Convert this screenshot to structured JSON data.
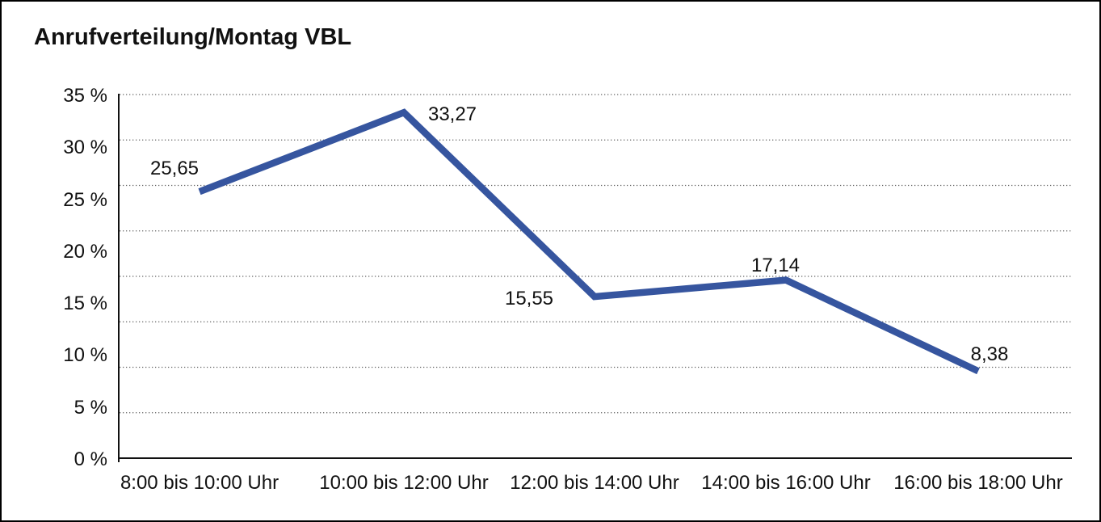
{
  "page": {
    "background": "#ffffff",
    "frame_border_color": "#000000"
  },
  "chart_data": {
    "type": "line",
    "title": "Anrufverteilung/Montag VBL",
    "categories": [
      "8:00 bis 10:00 Uhr",
      "10:00 bis 12:00 Uhr",
      "12:00 bis 14:00 Uhr",
      "14:00 bis 16:00 Uhr",
      "16:00 bis 18:00 Uhr"
    ],
    "values": [
      25.65,
      33.27,
      15.55,
      17.14,
      8.38
    ],
    "point_labels": [
      "25,65",
      "33,27",
      "15,55",
      "17,14",
      "8,38"
    ],
    "ylim": [
      0,
      35
    ],
    "yticks": [
      35,
      30,
      25,
      20,
      15,
      10,
      5,
      0
    ],
    "ytick_labels": [
      "35 %",
      "30 %",
      "25 %",
      "20 %",
      "15 %",
      "10 %",
      "5 %",
      "0 %"
    ],
    "xlabel": "",
    "ylabel": "",
    "legend": "none",
    "grid": "horizontal-dotted",
    "line_color": "#36559F",
    "grid_color": "#666666",
    "axis_color": "#111111",
    "text_color": "#111111"
  }
}
